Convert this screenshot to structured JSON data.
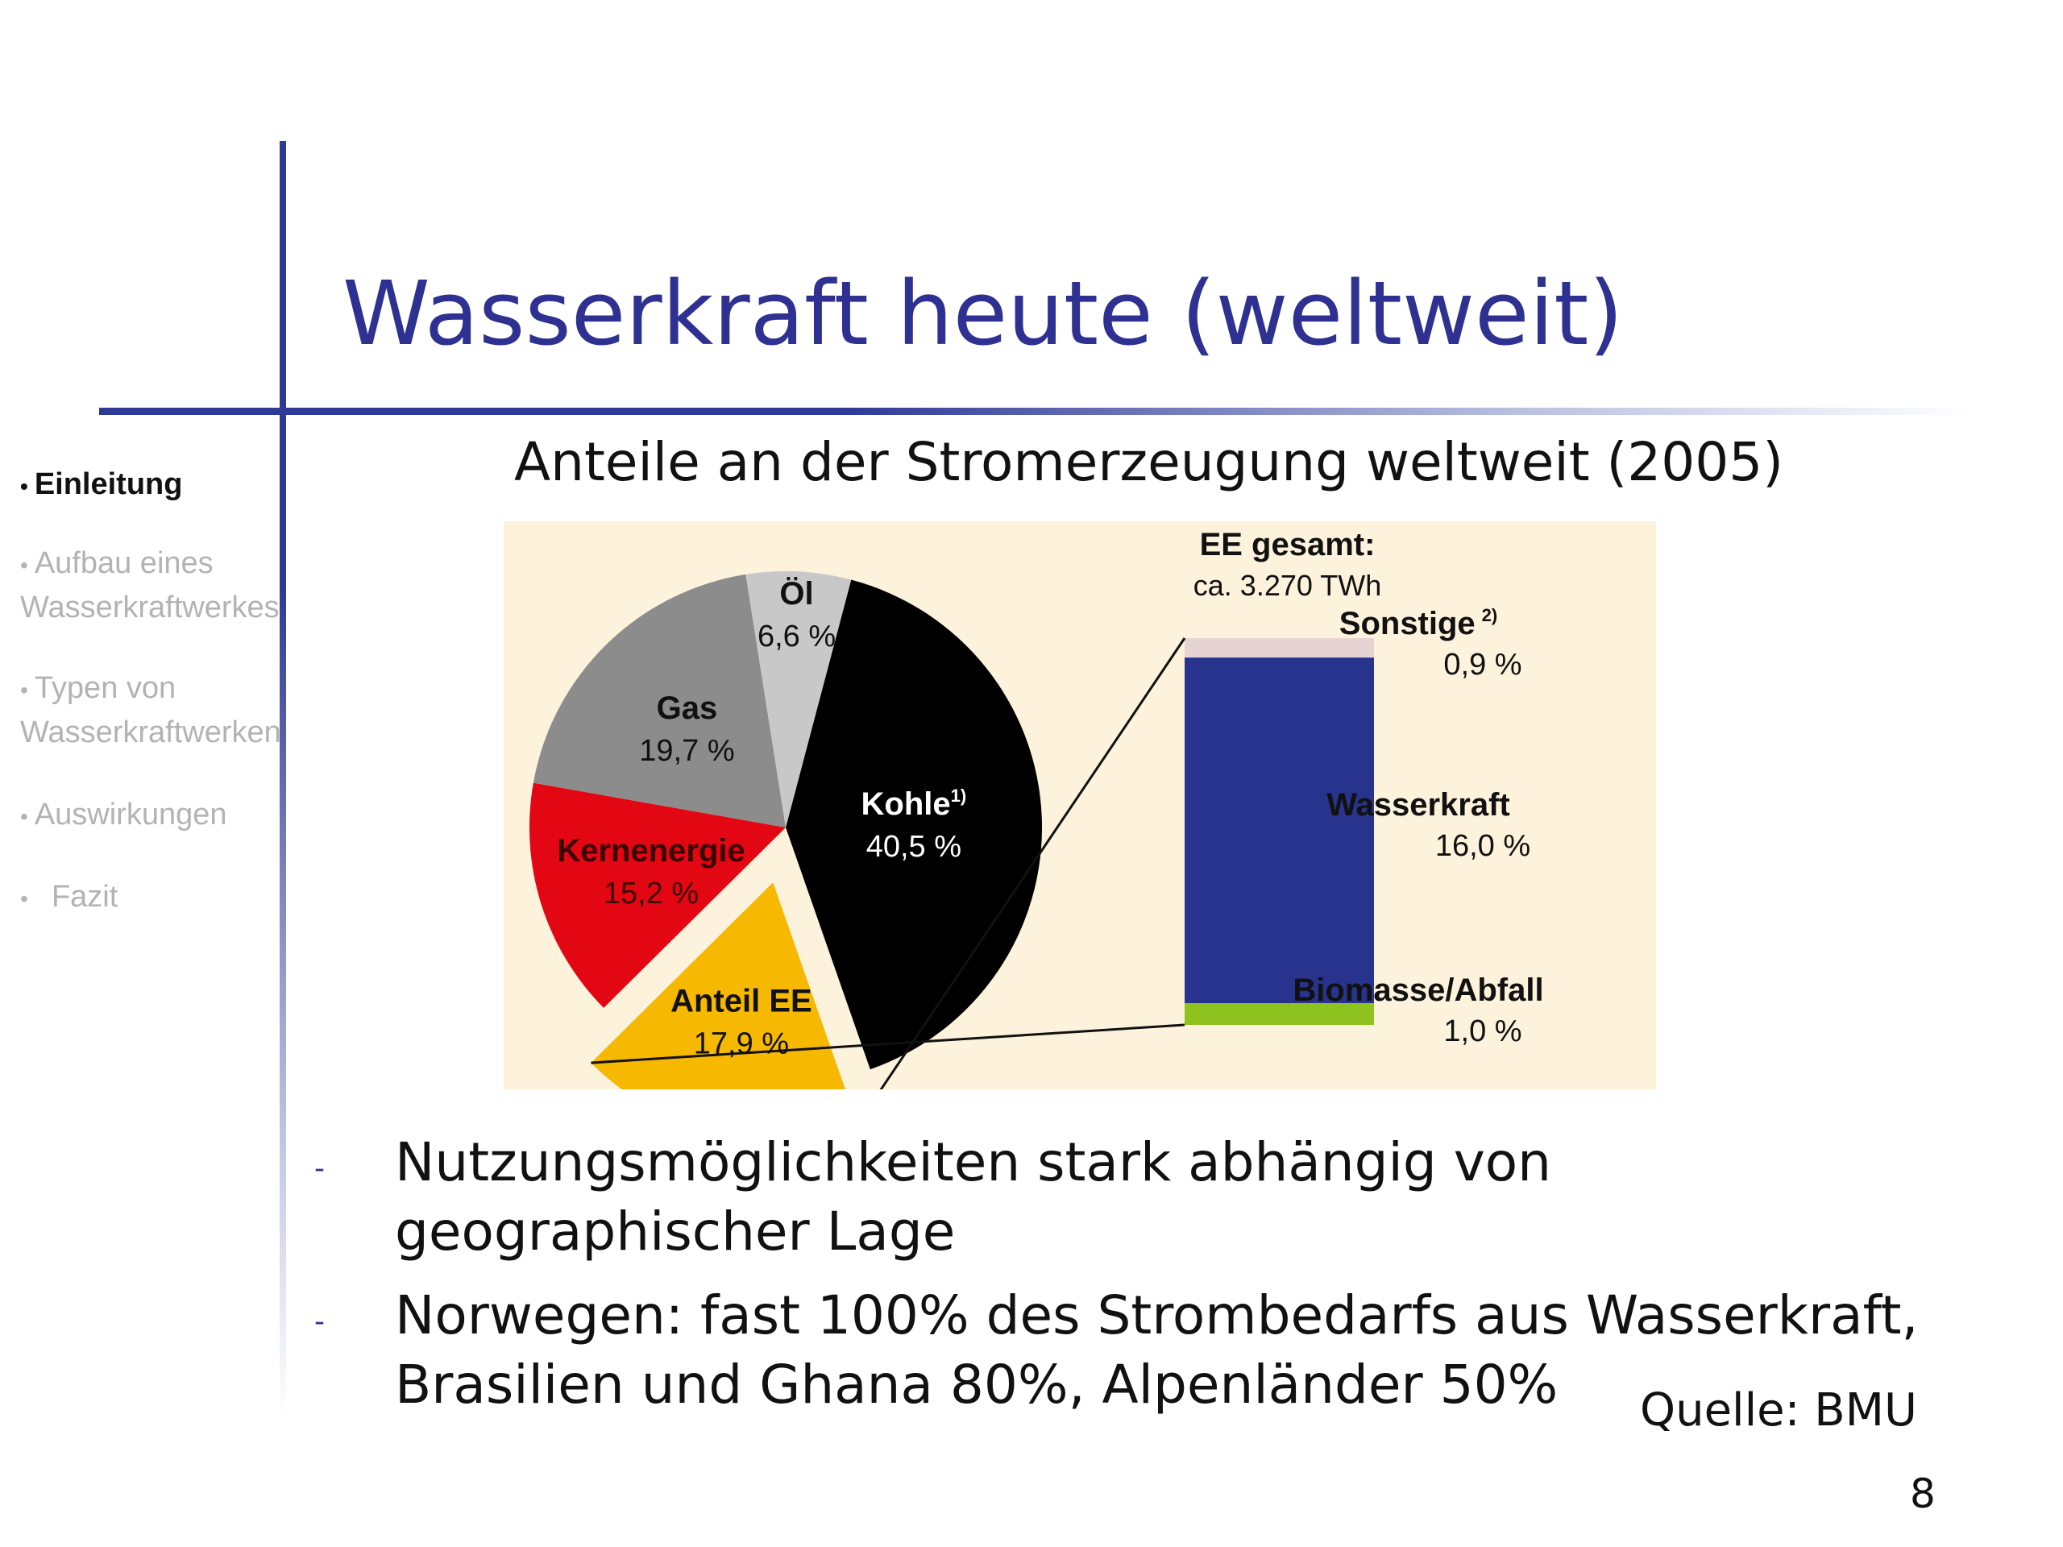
{
  "slide": {
    "title": "Wasserkraft heute (weltweit)",
    "subtitle": "Anteile an der Stromerzeugung weltweit (2005)",
    "source": "Quelle: BMU",
    "page_number": "8",
    "bullets": [
      {
        "marker": "-",
        "lines": [
          "Nutzungsmöglichkeiten stark abhängig von",
          "geographischer Lage"
        ]
      },
      {
        "marker": "-",
        "lines": [
          "Norwegen: fast 100% des Strombedarfs aus Wasserkraft,",
          "Brasilien und Ghana 80%,  Alpenländer 50%"
        ]
      }
    ]
  },
  "nav": {
    "items": [
      {
        "label": "Einleitung",
        "active": true
      },
      {
        "label": "Aufbau  eines Wasserkraftwerkes",
        "lines": [
          "Aufbau  eines",
          "Wasserkraftwerkes"
        ],
        "active": false
      },
      {
        "label": "Typen von Wasserkraftwerken",
        "lines": [
          "Typen von",
          "Wasserkraftwerken"
        ],
        "active": false
      },
      {
        "label": "Auswirkungen",
        "active": false
      },
      {
        "label": "Fazit",
        "active": false
      }
    ]
  },
  "colors": {
    "title": "#2e3192",
    "chart_background": "#fdf3dc",
    "kohle": "#000000",
    "oel": "#c8c8c8",
    "gas": "#8c8c8c",
    "kernenergie": "#e30613",
    "ee": "#f6b800",
    "wasserkraft": "#27338c",
    "sonstige": "#e6d4d4",
    "biomasse": "#8dc21f"
  },
  "chart_data": {
    "type": "pie",
    "slices": [
      {
        "label": "Kohle",
        "footnote": "1)",
        "value": 40.5,
        "value_label": "40,5  %"
      },
      {
        "label": "Anteil EE",
        "value": 17.9,
        "value_label": "17,9 %",
        "exploded": true
      },
      {
        "label": "Kernenergie",
        "value": 15.2,
        "value_label": "15,2 %"
      },
      {
        "label": "Gas",
        "value": 19.7,
        "value_label": "19,7 %"
      },
      {
        "label": "Öl",
        "value": 6.6,
        "value_label": "6,6 %"
      }
    ],
    "breakdown": {
      "title": "EE gesamt:",
      "total_label": "ca. 3.270 TWh",
      "type": "stacked-bar",
      "segments": [
        {
          "label": "Sonstige",
          "footnote": "2)",
          "value": 0.9,
          "value_label": "0,9 %"
        },
        {
          "label": "Wasserkraft",
          "value": 16.0,
          "value_label": "16,0 %"
        },
        {
          "label": "Biomasse/Abfall",
          "value": 1.0,
          "value_label": "1,0 %"
        }
      ]
    }
  }
}
